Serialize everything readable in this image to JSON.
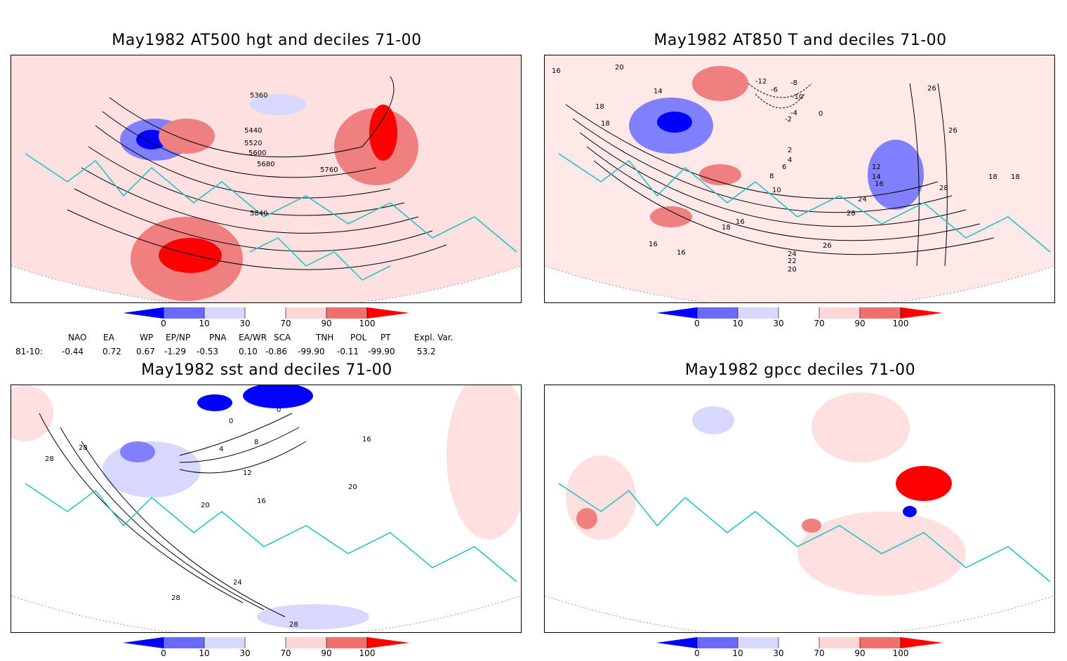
{
  "panels": [
    {
      "title": "May1982 AT500 hgt and deciles 71-00",
      "contour_labels": [
        "5360",
        "5440",
        "5520",
        "5600",
        "5680",
        "5760",
        "5840"
      ]
    },
    {
      "title": "May1982 AT850 T and deciles 71-00",
      "contour_labels": [
        "20",
        "16",
        "14",
        "18",
        "18",
        "-12",
        "-8",
        "-10",
        "-6",
        "-4",
        "-2",
        "0",
        "2",
        "4",
        "6",
        "8",
        "10",
        "12",
        "14",
        "16",
        "16",
        "18",
        "16",
        "16",
        "18",
        "20",
        "22",
        "24",
        "24",
        "26",
        "26",
        "26",
        "28",
        "28",
        "18"
      ]
    },
    {
      "title": "May1982 sst and deciles 71-00",
      "contour_labels": [
        "28",
        "28",
        "0",
        "0",
        "4",
        "8",
        "12",
        "16",
        "20",
        "24",
        "28",
        "28",
        "20",
        "16"
      ]
    },
    {
      "title": "May1982 gpcc deciles 71-00",
      "contour_labels": []
    }
  ],
  "colorbar": {
    "labels": [
      "0",
      "10",
      "30",
      "70",
      "90",
      "100"
    ],
    "colors": [
      "#0000ff",
      "#6a6aff",
      "#d8d8ff",
      "#ffffff",
      "#ffd6d6",
      "#f07070",
      "#ff0000"
    ]
  },
  "indices": {
    "headers": [
      "NAO",
      "EA",
      "WP",
      "EP/NP",
      "PNA",
      "EA/WR",
      "SCA",
      "TNH",
      "POL",
      "PT",
      "Expl. Var."
    ],
    "row_label": "81-10:",
    "values": [
      "-0.44",
      "0.72",
      "0.67",
      "-1.29",
      "-0.53",
      "0.10",
      "-0.86",
      "-99.90",
      "-0.11",
      "-99.90",
      "53.2"
    ]
  }
}
